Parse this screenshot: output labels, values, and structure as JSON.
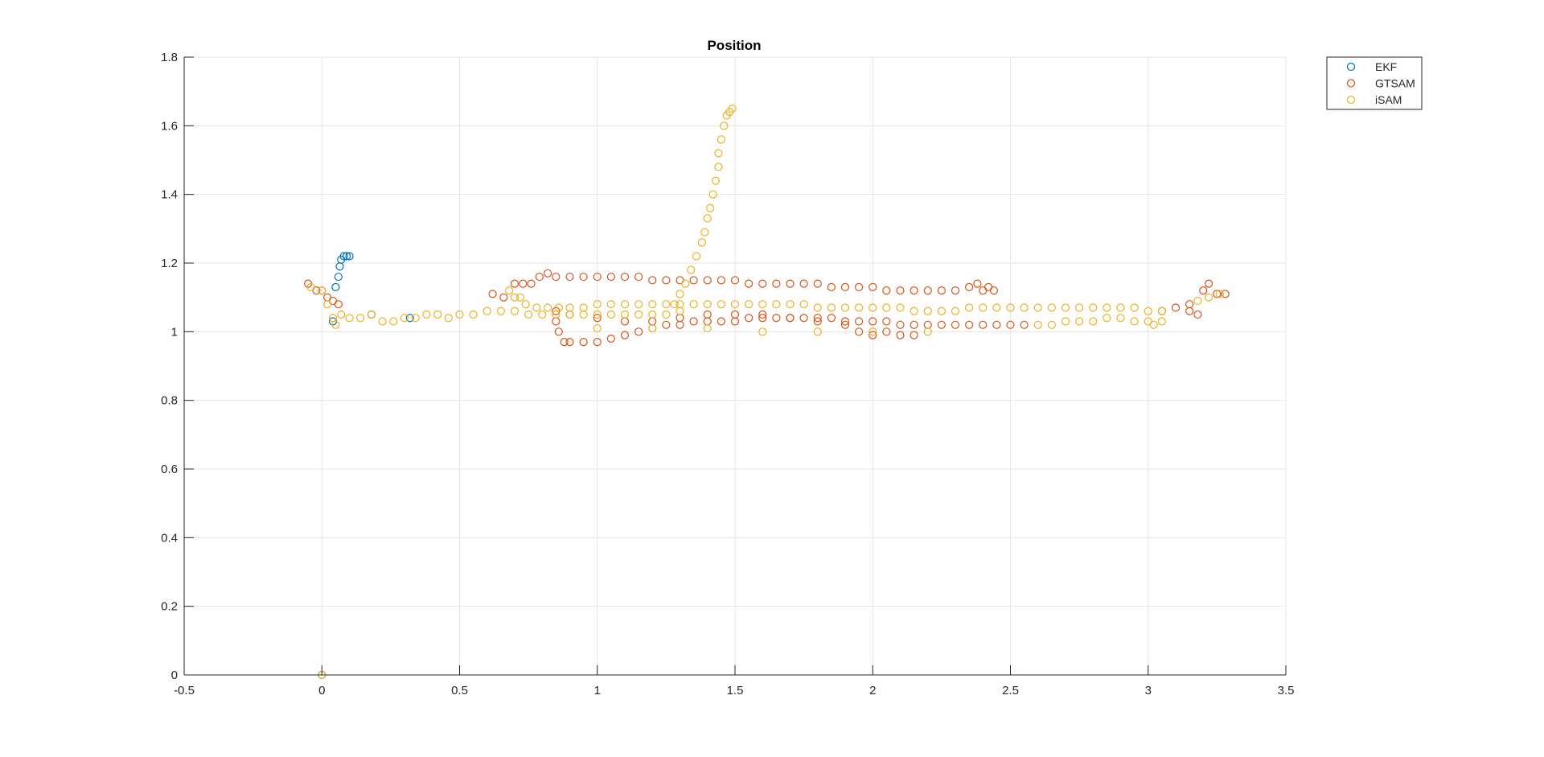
{
  "chart_data": {
    "type": "scatter",
    "title": "Position",
    "xlabel": "",
    "ylabel": "",
    "xlim": [
      -0.5,
      3.5
    ],
    "ylim": [
      0,
      1.8
    ],
    "xticks": [
      -0.5,
      0,
      0.5,
      1,
      1.5,
      2,
      2.5,
      3,
      3.5
    ],
    "xtick_labels": [
      "-0.5",
      "0",
      "0.5",
      "1",
      "1.5",
      "2",
      "2.5",
      "3",
      "3.5"
    ],
    "yticks": [
      0,
      0.2,
      0.4,
      0.6,
      0.8,
      1,
      1.2,
      1.4,
      1.6,
      1.8
    ],
    "ytick_labels": [
      "0",
      "0.2",
      "0.4",
      "0.6",
      "0.8",
      "1",
      "1.2",
      "1.4",
      "1.6",
      "1.8"
    ],
    "grid": true,
    "legend_position": "outside top-right",
    "marker": "open-circle",
    "series": [
      {
        "name": "EKF",
        "color": "#0072BD",
        "points": [
          [
            0.0,
            0.0
          ],
          [
            0.04,
            1.03
          ],
          [
            0.05,
            1.13
          ],
          [
            0.06,
            1.16
          ],
          [
            0.065,
            1.19
          ],
          [
            0.07,
            1.21
          ],
          [
            0.08,
            1.22
          ],
          [
            0.09,
            1.22
          ],
          [
            0.1,
            1.22
          ],
          [
            0.18,
            1.05
          ],
          [
            0.32,
            1.04
          ]
        ]
      },
      {
        "name": "GTSAM",
        "color": "#D95319",
        "points": [
          [
            -0.05,
            1.14
          ],
          [
            -0.02,
            1.12
          ],
          [
            0.0,
            1.12
          ],
          [
            0.02,
            1.1
          ],
          [
            0.04,
            1.09
          ],
          [
            0.06,
            1.08
          ],
          [
            0.62,
            1.11
          ],
          [
            0.66,
            1.1
          ],
          [
            0.7,
            1.14
          ],
          [
            0.73,
            1.14
          ],
          [
            0.76,
            1.14
          ],
          [
            0.79,
            1.16
          ],
          [
            0.82,
            1.17
          ],
          [
            0.85,
            1.16
          ],
          [
            0.9,
            1.16
          ],
          [
            0.95,
            1.16
          ],
          [
            1.0,
            1.16
          ],
          [
            1.05,
            1.16
          ],
          [
            1.1,
            1.16
          ],
          [
            1.15,
            1.16
          ],
          [
            1.2,
            1.15
          ],
          [
            1.25,
            1.15
          ],
          [
            1.3,
            1.15
          ],
          [
            1.35,
            1.15
          ],
          [
            1.4,
            1.15
          ],
          [
            1.45,
            1.15
          ],
          [
            1.5,
            1.15
          ],
          [
            1.55,
            1.14
          ],
          [
            1.6,
            1.14
          ],
          [
            1.65,
            1.14
          ],
          [
            1.7,
            1.14
          ],
          [
            1.75,
            1.14
          ],
          [
            1.8,
            1.14
          ],
          [
            1.85,
            1.13
          ],
          [
            1.9,
            1.13
          ],
          [
            1.95,
            1.13
          ],
          [
            2.0,
            1.13
          ],
          [
            2.05,
            1.12
          ],
          [
            2.1,
            1.12
          ],
          [
            2.15,
            1.12
          ],
          [
            2.2,
            1.12
          ],
          [
            2.25,
            1.12
          ],
          [
            2.3,
            1.12
          ],
          [
            2.35,
            1.13
          ],
          [
            2.38,
            1.14
          ],
          [
            2.4,
            1.12
          ],
          [
            2.42,
            1.13
          ],
          [
            2.44,
            1.12
          ],
          [
            0.85,
            1.06
          ],
          [
            0.85,
            1.03
          ],
          [
            0.86,
            1.0
          ],
          [
            0.88,
            0.97
          ],
          [
            0.9,
            0.97
          ],
          [
            0.95,
            0.97
          ],
          [
            1.0,
            0.97
          ],
          [
            1.05,
            0.98
          ],
          [
            1.1,
            0.99
          ],
          [
            1.15,
            1.0
          ],
          [
            1.2,
            1.01
          ],
          [
            1.25,
            1.02
          ],
          [
            1.3,
            1.02
          ],
          [
            1.35,
            1.03
          ],
          [
            1.4,
            1.03
          ],
          [
            1.45,
            1.03
          ],
          [
            1.5,
            1.03
          ],
          [
            1.55,
            1.04
          ],
          [
            1.6,
            1.04
          ],
          [
            1.65,
            1.04
          ],
          [
            1.7,
            1.04
          ],
          [
            1.75,
            1.04
          ],
          [
            1.8,
            1.04
          ],
          [
            1.85,
            1.04
          ],
          [
            1.9,
            1.03
          ],
          [
            1.95,
            1.03
          ],
          [
            2.0,
            1.03
          ],
          [
            2.05,
            1.03
          ],
          [
            2.1,
            1.02
          ],
          [
            2.15,
            1.02
          ],
          [
            2.2,
            1.02
          ],
          [
            2.25,
            1.02
          ],
          [
            2.3,
            1.02
          ],
          [
            2.35,
            1.02
          ],
          [
            2.4,
            1.02
          ],
          [
            2.45,
            1.02
          ],
          [
            2.5,
            1.02
          ],
          [
            2.55,
            1.02
          ],
          [
            0.9,
            1.05
          ],
          [
            1.0,
            1.04
          ],
          [
            1.1,
            1.03
          ],
          [
            1.2,
            1.03
          ],
          [
            1.3,
            1.04
          ],
          [
            1.4,
            1.05
          ],
          [
            1.5,
            1.05
          ],
          [
            1.6,
            1.05
          ],
          [
            1.7,
            1.04
          ],
          [
            1.8,
            1.03
          ],
          [
            1.9,
            1.02
          ],
          [
            1.95,
            1.0
          ],
          [
            2.0,
            0.99
          ],
          [
            2.05,
            1.0
          ],
          [
            2.1,
            0.99
          ],
          [
            2.15,
            0.99
          ],
          [
            3.05,
            1.06
          ],
          [
            3.1,
            1.07
          ],
          [
            3.15,
            1.08
          ],
          [
            3.2,
            1.12
          ],
          [
            3.22,
            1.14
          ],
          [
            3.25,
            1.11
          ],
          [
            3.28,
            1.11
          ],
          [
            3.18,
            1.05
          ],
          [
            3.15,
            1.06
          ]
        ]
      },
      {
        "name": "iSAM",
        "color": "#EDB120",
        "points": [
          [
            0.0,
            0.0
          ],
          [
            -0.04,
            1.13
          ],
          [
            0.0,
            1.12
          ],
          [
            0.02,
            1.08
          ],
          [
            0.04,
            1.04
          ],
          [
            0.05,
            1.02
          ],
          [
            0.07,
            1.05
          ],
          [
            0.1,
            1.04
          ],
          [
            0.14,
            1.04
          ],
          [
            0.18,
            1.05
          ],
          [
            0.22,
            1.03
          ],
          [
            0.26,
            1.03
          ],
          [
            0.3,
            1.04
          ],
          [
            0.34,
            1.04
          ],
          [
            0.38,
            1.05
          ],
          [
            0.42,
            1.05
          ],
          [
            0.46,
            1.04
          ],
          [
            0.5,
            1.05
          ],
          [
            0.55,
            1.05
          ],
          [
            0.6,
            1.06
          ],
          [
            0.65,
            1.06
          ],
          [
            0.7,
            1.06
          ],
          [
            0.75,
            1.05
          ],
          [
            0.8,
            1.05
          ],
          [
            0.85,
            1.05
          ],
          [
            0.9,
            1.05
          ],
          [
            0.95,
            1.05
          ],
          [
            1.0,
            1.05
          ],
          [
            1.05,
            1.05
          ],
          [
            1.1,
            1.05
          ],
          [
            1.15,
            1.05
          ],
          [
            1.2,
            1.05
          ],
          [
            1.25,
            1.05
          ],
          [
            1.3,
            1.06
          ],
          [
            0.68,
            1.12
          ],
          [
            0.7,
            1.1
          ],
          [
            0.72,
            1.1
          ],
          [
            0.74,
            1.08
          ],
          [
            0.78,
            1.07
          ],
          [
            0.82,
            1.07
          ],
          [
            0.86,
            1.07
          ],
          [
            0.9,
            1.07
          ],
          [
            0.95,
            1.07
          ],
          [
            1.0,
            1.08
          ],
          [
            1.05,
            1.08
          ],
          [
            1.1,
            1.08
          ],
          [
            1.15,
            1.08
          ],
          [
            1.2,
            1.08
          ],
          [
            1.25,
            1.08
          ],
          [
            1.3,
            1.08
          ],
          [
            1.35,
            1.08
          ],
          [
            1.4,
            1.08
          ],
          [
            1.45,
            1.08
          ],
          [
            1.5,
            1.08
          ],
          [
            1.55,
            1.08
          ],
          [
            1.6,
            1.08
          ],
          [
            1.65,
            1.08
          ],
          [
            1.7,
            1.08
          ],
          [
            1.75,
            1.08
          ],
          [
            1.8,
            1.07
          ],
          [
            1.85,
            1.07
          ],
          [
            1.9,
            1.07
          ],
          [
            1.95,
            1.07
          ],
          [
            2.0,
            1.07
          ],
          [
            2.05,
            1.07
          ],
          [
            2.1,
            1.07
          ],
          [
            2.15,
            1.06
          ],
          [
            2.2,
            1.06
          ],
          [
            2.25,
            1.06
          ],
          [
            2.3,
            1.06
          ],
          [
            2.35,
            1.07
          ],
          [
            2.4,
            1.07
          ],
          [
            2.45,
            1.07
          ],
          [
            2.5,
            1.07
          ],
          [
            2.55,
            1.07
          ],
          [
            2.6,
            1.07
          ],
          [
            2.65,
            1.07
          ],
          [
            2.7,
            1.07
          ],
          [
            2.75,
            1.07
          ],
          [
            2.8,
            1.07
          ],
          [
            2.85,
            1.07
          ],
          [
            2.9,
            1.07
          ],
          [
            2.95,
            1.07
          ],
          [
            3.0,
            1.06
          ],
          [
            3.05,
            1.06
          ],
          [
            1.28,
            1.08
          ],
          [
            1.3,
            1.11
          ],
          [
            1.32,
            1.14
          ],
          [
            1.34,
            1.18
          ],
          [
            1.36,
            1.22
          ],
          [
            1.38,
            1.26
          ],
          [
            1.39,
            1.29
          ],
          [
            1.4,
            1.33
          ],
          [
            1.41,
            1.36
          ],
          [
            1.42,
            1.4
          ],
          [
            1.43,
            1.44
          ],
          [
            1.44,
            1.48
          ],
          [
            1.44,
            1.52
          ],
          [
            1.45,
            1.56
          ],
          [
            1.46,
            1.6
          ],
          [
            1.47,
            1.63
          ],
          [
            1.48,
            1.64
          ],
          [
            1.49,
            1.65
          ],
          [
            2.6,
            1.02
          ],
          [
            2.65,
            1.02
          ],
          [
            2.7,
            1.03
          ],
          [
            2.75,
            1.03
          ],
          [
            2.8,
            1.03
          ],
          [
            2.85,
            1.04
          ],
          [
            2.9,
            1.04
          ],
          [
            2.95,
            1.03
          ],
          [
            3.0,
            1.03
          ],
          [
            3.02,
            1.02
          ],
          [
            3.05,
            1.03
          ],
          [
            1.0,
            1.01
          ],
          [
            1.2,
            1.01
          ],
          [
            1.4,
            1.01
          ],
          [
            1.6,
            1.0
          ],
          [
            1.8,
            1.0
          ],
          [
            2.0,
            1.0
          ],
          [
            2.2,
            1.0
          ],
          [
            3.18,
            1.09
          ],
          [
            3.22,
            1.1
          ],
          [
            3.26,
            1.11
          ]
        ]
      }
    ]
  }
}
